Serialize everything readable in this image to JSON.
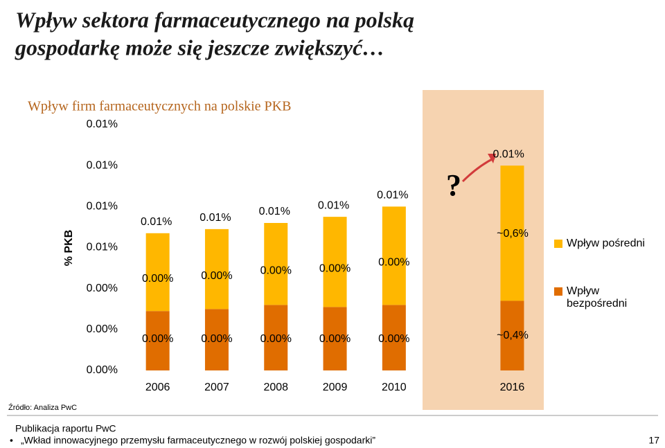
{
  "slide_title": [
    "Wpływ sektora farmaceutycznego na polską",
    "gospodarkę może się jeszcze zwiększyć…"
  ],
  "source": "Źródło: Analiza PwC",
  "footer": {
    "publication": "Publikacja raportu PwC",
    "report": "„Wkład innowacyjnego przemysłu farmaceutycznego w rozwój polskiej gospodarki”",
    "page": "17"
  },
  "chart_data": {
    "type": "stacked_bar",
    "title": "Wpływ firm farmaceutycznych na polskie PKB",
    "y_label": "% PKB",
    "categories": [
      "2006",
      "2007",
      "2008",
      "2009",
      "2010",
      null,
      "2016"
    ],
    "series": [
      {
        "name": "Wpływ bezpośredni",
        "color": "#e06d00",
        "values": [
          0.0029,
          0.003,
          0.0032,
          0.0031,
          0.0032,
          null,
          0.0034
        ],
        "value_labels": [
          "0.00%",
          "0.00%",
          "0.00%",
          "0.00%",
          "0.00%",
          null,
          null
        ]
      },
      {
        "name": "Wpływ pośredni",
        "color": "#ffb700",
        "values": [
          0.0038,
          0.0039,
          0.004,
          0.0044,
          0.0048,
          null,
          0.0066
        ],
        "value_labels": [
          "0.00%",
          "0.00%",
          "0.00%",
          "0.00%",
          "0.00%",
          null,
          null
        ]
      }
    ],
    "total_labels": [
      "0.01%",
      "0.01%",
      "0.01%",
      "0.01%",
      "0.01%",
      null,
      "0.01%"
    ],
    "annotations": [
      "?",
      "~0,6%",
      "~0,4%"
    ],
    "ylim": [
      0,
      0.012
    ],
    "yticks": [
      {
        "value": 0,
        "label": "0.00%"
      },
      {
        "value": 0.002,
        "label": "0.00%"
      },
      {
        "value": 0.004,
        "label": "0.00%"
      },
      {
        "value": 0.006,
        "label": "0.01%"
      },
      {
        "value": 0.008,
        "label": "0.01%"
      },
      {
        "value": 0.01,
        "label": "0.01%"
      },
      {
        "value": 0.012,
        "label": "0.01%"
      }
    ],
    "grid": false,
    "legend": "right"
  }
}
